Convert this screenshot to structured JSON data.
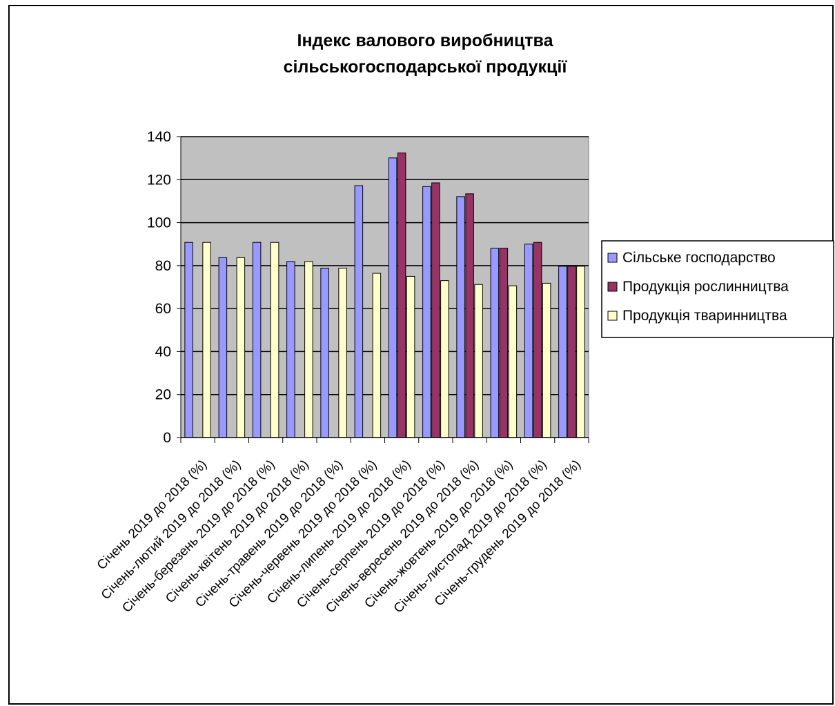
{
  "chart_data": {
    "type": "bar",
    "title_lines": [
      "Індекс валового виробництва",
      "сільськогосподарської продукції"
    ],
    "categories": [
      "Січень 2019 до 2018 (%)",
      "Січень-лютий 2019  до 2018 (%)",
      "Січень-березень 2019 до 2018 (%)",
      "Січень-квітень 2019 до 2018 (%)",
      "Січень-травень 2019 до 2018 (%)",
      "Січень-червень 2019 до 2018 (%)",
      "Січень-липень 2019 до 2018 (%)",
      "Січень-серпень 2019 до 2018 (%)",
      "Січень-вересень 2019 до 2018 (%)",
      "Січень-жовтень 2019 до 2018 (%)",
      "Січень-листопад 2019 до 2018 (%)",
      "Січень-грудень 2019 до 2018 (%)"
    ],
    "series": [
      {
        "name": "Сільське господарство",
        "color": "#9999ff",
        "values": [
          90.8,
          83.7,
          90.8,
          81.9,
          78.8,
          117.2,
          130.1,
          116.8,
          112.1,
          88.1,
          90.0,
          79.7
        ]
      },
      {
        "name": "Продукція рослинництва",
        "color": "#993366",
        "values": [
          null,
          null,
          null,
          null,
          null,
          null,
          132.4,
          118.5,
          113.4,
          88.1,
          90.8,
          79.7
        ]
      },
      {
        "name": "Продукція тваринництва",
        "color": "#ffffcc",
        "values": [
          90.8,
          83.7,
          90.8,
          81.9,
          78.8,
          76.4,
          75.0,
          73.0,
          71.2,
          70.6,
          71.8,
          79.7
        ]
      }
    ],
    "ylim": [
      0,
      140
    ],
    "yticks": [
      0,
      20,
      40,
      60,
      80,
      100,
      120,
      140
    ],
    "grid": true,
    "plot_background": "#c0c0c0",
    "legend_position": "right"
  }
}
